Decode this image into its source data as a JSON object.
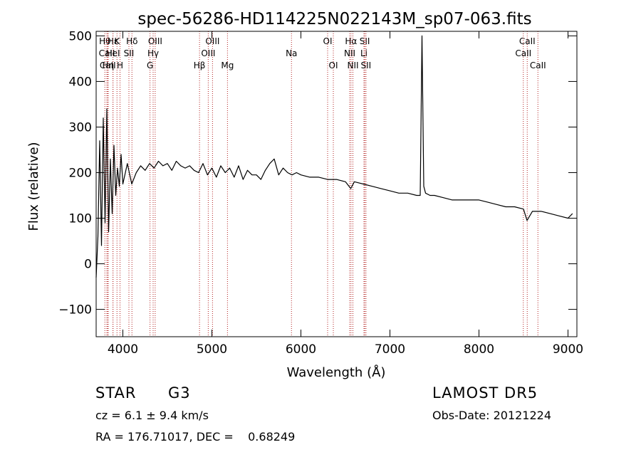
{
  "chart_data": {
    "type": "line",
    "title": "spec-56286-HD114225N022143M_sp07-063.fits",
    "xlabel": "Wavelength (Å)",
    "ylabel": "Flux (relative)",
    "xlim": [
      3700,
      9100
    ],
    "ylim": [
      -160,
      510
    ],
    "xticks": [
      4000,
      5000,
      6000,
      7000,
      8000,
      9000
    ],
    "yticks": [
      -100,
      0,
      100,
      200,
      300,
      400,
      500
    ],
    "grid": false,
    "line_color": "#000000",
    "marker_color": "#b22222",
    "series": [
      {
        "x": [
          3700,
          3720,
          3740,
          3760,
          3780,
          3800,
          3820,
          3840,
          3860,
          3880,
          3900,
          3920,
          3940,
          3960,
          3980,
          4000,
          4050,
          4100,
          4150,
          4200,
          4250,
          4300,
          4350,
          4400,
          4450,
          4500,
          4550,
          4600,
          4650,
          4700,
          4750,
          4800,
          4850,
          4900,
          4950,
          5000,
          5050,
          5100,
          5150,
          5200,
          5250,
          5300,
          5350,
          5400,
          5450,
          5500,
          5550,
          5600,
          5650,
          5700,
          5750,
          5800,
          5850,
          5900,
          5950,
          6000,
          6100,
          6200,
          6300,
          6400,
          6500,
          6560,
          6600,
          6700,
          6800,
          6900,
          7000,
          7100,
          7200,
          7300,
          7340,
          7360,
          7380,
          7400,
          7450,
          7500,
          7600,
          7700,
          7800,
          7900,
          8000,
          8100,
          8200,
          8300,
          8400,
          8500,
          8540,
          8600,
          8700,
          8800,
          8900,
          9000,
          9050
        ],
        "y": [
          -30,
          60,
          270,
          40,
          320,
          90,
          340,
          70,
          230,
          110,
          260,
          150,
          210,
          170,
          240,
          175,
          220,
          175,
          200,
          215,
          205,
          220,
          210,
          225,
          215,
          220,
          205,
          225,
          215,
          210,
          215,
          205,
          200,
          220,
          195,
          210,
          190,
          215,
          200,
          210,
          190,
          215,
          185,
          205,
          195,
          195,
          185,
          205,
          220,
          230,
          195,
          210,
          200,
          195,
          200,
          195,
          190,
          190,
          185,
          185,
          180,
          165,
          180,
          175,
          170,
          165,
          160,
          155,
          155,
          150,
          150,
          500,
          170,
          155,
          150,
          150,
          145,
          140,
          140,
          140,
          140,
          135,
          130,
          125,
          125,
          120,
          95,
          115,
          115,
          110,
          105,
          100,
          110
        ]
      }
    ],
    "lines": [
      {
        "label": "Hθ",
        "wl": 3798,
        "row": 1
      },
      {
        "label": "CaII",
        "wl": 3820,
        "row": 2
      },
      {
        "label": "CaII",
        "wl": 3830,
        "row": 3
      },
      {
        "label": "Hε",
        "wl": 3889,
        "row": 1
      },
      {
        "label": "HeI",
        "wl": 3889,
        "row": 2
      },
      {
        "label": "Hη",
        "wl": 3835,
        "row": 3
      },
      {
        "label": "K",
        "wl": 3934,
        "row": 1
      },
      {
        "label": "H",
        "wl": 3968,
        "row": 3
      },
      {
        "label": "SII",
        "wl": 4068,
        "row": 2
      },
      {
        "label": "Hδ",
        "wl": 4102,
        "row": 1
      },
      {
        "label": "OIII",
        "wl": 4363,
        "row": 1
      },
      {
        "label": "Hγ",
        "wl": 4340,
        "row": 2
      },
      {
        "label": "G",
        "wl": 4305,
        "row": 3
      },
      {
        "label": "Hβ",
        "wl": 4861,
        "row": 3
      },
      {
        "label": "OIII",
        "wl": 5007,
        "row": 1
      },
      {
        "label": "OIII",
        "wl": 4959,
        "row": 2
      },
      {
        "label": "Mg",
        "wl": 5175,
        "row": 3
      },
      {
        "label": "Na",
        "wl": 5894,
        "row": 2
      },
      {
        "label": "OI",
        "wl": 6300,
        "row": 1
      },
      {
        "label": "OI",
        "wl": 6364,
        "row": 3
      },
      {
        "label": "Hα",
        "wl": 6563,
        "row": 1
      },
      {
        "label": "NII",
        "wl": 6548,
        "row": 2
      },
      {
        "label": "NII",
        "wl": 6584,
        "row": 3
      },
      {
        "label": "SII",
        "wl": 6717,
        "row": 1
      },
      {
        "label": "Li",
        "wl": 6708,
        "row": 2
      },
      {
        "label": "SII",
        "wl": 6731,
        "row": 3
      },
      {
        "label": "CaII",
        "wl": 8542,
        "row": 1
      },
      {
        "label": "CaII",
        "wl": 8498,
        "row": 2
      },
      {
        "label": "CaII",
        "wl": 8662,
        "row": 3
      }
    ]
  },
  "info": {
    "object_class": "STAR",
    "subclass": "G3",
    "survey": "LAMOST DR5",
    "cz": "cz = 6.1 ± 9.4 km/s",
    "obs_date": "Obs-Date: 20121224",
    "coords": "RA = 176.71017, DEC =    0.68249"
  }
}
